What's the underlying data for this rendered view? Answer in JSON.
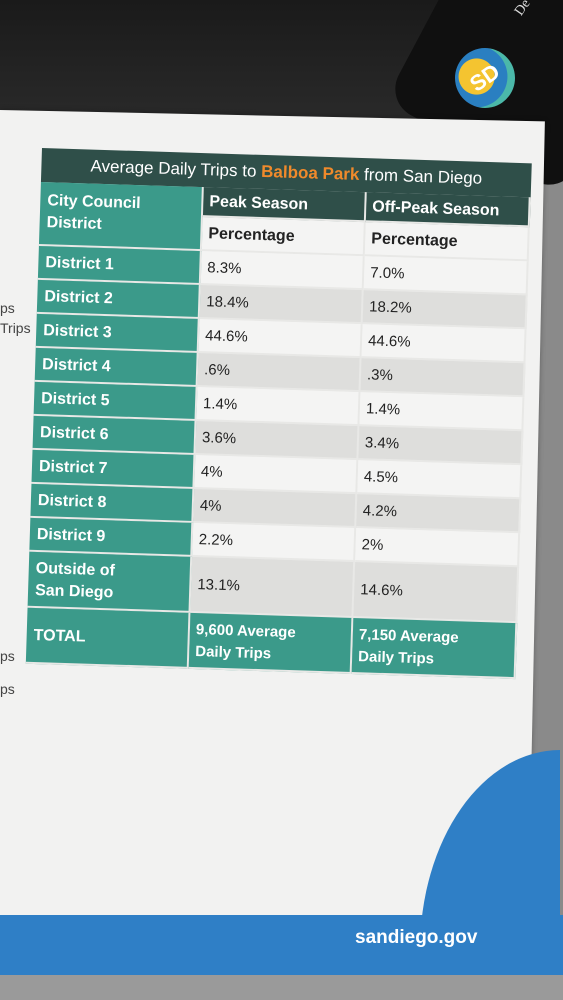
{
  "table": {
    "title_pre": "Average Daily Trips to ",
    "title_highlight": "Balboa Park",
    "title_post": " from San Diego",
    "col1_header_line1": "City Council",
    "col1_header_line2": "District",
    "col2_header": "Peak Season",
    "col3_header": "Off-Peak Season",
    "sub_header_peak": "Percentage",
    "sub_header_offpeak": "Percentage",
    "rows": [
      {
        "district": "District 1",
        "peak": "8.3%",
        "offpeak": "7.0%"
      },
      {
        "district": "District 2",
        "peak": "18.4%",
        "offpeak": "18.2%"
      },
      {
        "district": "District 3",
        "peak": "44.6%",
        "offpeak": "44.6%"
      },
      {
        "district": "District 4",
        "peak": ".6%",
        "offpeak": ".3%"
      },
      {
        "district": "District 5",
        "peak": "1.4%",
        "offpeak": "1.4%"
      },
      {
        "district": "District 6",
        "peak": "3.6%",
        "offpeak": "3.4%"
      },
      {
        "district": "District 7",
        "peak": "4%",
        "offpeak": "4.5%"
      },
      {
        "district": "District 8",
        "peak": "4%",
        "offpeak": "4.2%"
      },
      {
        "district": "District 9",
        "peak": "2.2%",
        "offpeak": "2%"
      }
    ],
    "outside_line1": "Outside of",
    "outside_line2": "San Diego",
    "outside_peak": "13.1%",
    "outside_offpeak": "14.6%",
    "total_label": "TOTAL",
    "total_peak_line1": "9,600 Average",
    "total_peak_line2": "Daily Trips",
    "total_offpeak_line1": "7,150 Average",
    "total_offpeak_line2": "Daily Trips"
  },
  "side_fragments": [
    "ps",
    "Trips",
    "ps",
    "ps"
  ],
  "logo": {
    "letters": "SD",
    "corner_text": "De"
  },
  "footer": {
    "url": "sandiego.gov"
  },
  "colors": {
    "teal": "#3b9a8a",
    "dark_green": "#2f4f49",
    "orange": "#f08a2b",
    "blue": "#2f7fc6"
  }
}
